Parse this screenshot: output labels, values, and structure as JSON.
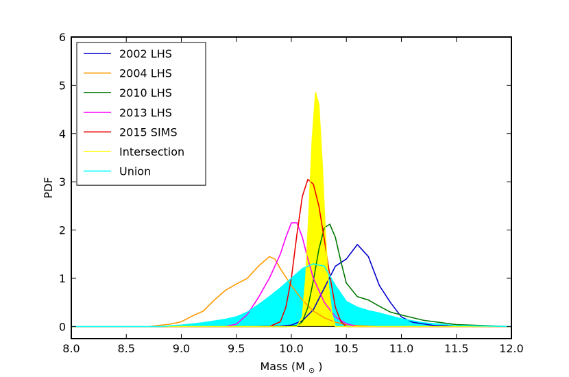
{
  "chart_data": {
    "type": "line",
    "xlabel": "Mass (M",
    "xlabel_sub": "⊙",
    "xlabel_end": ")",
    "ylabel": "PDF",
    "xlim": [
      8.0,
      12.0
    ],
    "ylim": [
      -0.25,
      6
    ],
    "xticks": [
      "8.0",
      "8.5",
      "9.0",
      "9.5",
      "10.0",
      "10.5",
      "11.0",
      "11.5",
      "12.0"
    ],
    "xtick_values": [
      8.0,
      8.5,
      9.0,
      9.5,
      10.0,
      10.5,
      11.0,
      11.5,
      12.0
    ],
    "yticks": [
      "0",
      "1",
      "2",
      "3",
      "4",
      "5",
      "6"
    ],
    "ytick_values": [
      0,
      1,
      2,
      3,
      4,
      5,
      6
    ],
    "grid": false,
    "legend_position": "top-left",
    "series": [
      {
        "name": "2002 LHS",
        "color": "#0000cc",
        "fill": false,
        "x": [
          8.0,
          9.6,
          9.9,
          10.0,
          10.1,
          10.2,
          10.3,
          10.4,
          10.5,
          10.6,
          10.7,
          10.8,
          10.9,
          11.0,
          11.1,
          11.3,
          12.0
        ],
        "y": [
          0,
          0,
          0.01,
          0.03,
          0.12,
          0.35,
          0.8,
          1.25,
          1.4,
          1.7,
          1.45,
          0.85,
          0.5,
          0.2,
          0.09,
          0.02,
          0
        ]
      },
      {
        "name": "2004 LHS",
        "color": "#ff9900",
        "fill": false,
        "x": [
          8.0,
          8.7,
          8.9,
          9.0,
          9.1,
          9.2,
          9.3,
          9.4,
          9.5,
          9.6,
          9.7,
          9.8,
          9.85,
          9.9,
          10.0,
          10.1,
          10.2,
          10.3,
          10.4,
          10.5,
          10.6,
          10.8,
          12.0
        ],
        "y": [
          0,
          0,
          0.05,
          0.1,
          0.22,
          0.32,
          0.55,
          0.75,
          0.88,
          1.0,
          1.25,
          1.45,
          1.4,
          1.2,
          0.85,
          0.55,
          0.32,
          0.18,
          0.09,
          0.04,
          0.02,
          0.0,
          0
        ]
      },
      {
        "name": "2010 LHS",
        "color": "#007700",
        "fill": false,
        "x": [
          8.0,
          9.95,
          10.05,
          10.1,
          10.15,
          10.2,
          10.25,
          10.3,
          10.35,
          10.4,
          10.45,
          10.5,
          10.6,
          10.7,
          10.8,
          10.9,
          11.0,
          11.2,
          11.5,
          11.85,
          12.0
        ],
        "y": [
          0,
          0,
          0.02,
          0.1,
          0.4,
          0.95,
          1.6,
          2.05,
          2.12,
          1.85,
          1.35,
          0.9,
          0.62,
          0.55,
          0.42,
          0.3,
          0.24,
          0.13,
          0.04,
          0.01,
          0
        ]
      },
      {
        "name": "2013 LHS",
        "color": "#ff00ff",
        "fill": false,
        "x": [
          8.0,
          9.4,
          9.5,
          9.6,
          9.7,
          9.8,
          9.9,
          9.95,
          10.0,
          10.05,
          10.1,
          10.15,
          10.2,
          10.3,
          10.4,
          10.5,
          10.6,
          12.0
        ],
        "y": [
          0,
          0,
          0.05,
          0.25,
          0.6,
          1.0,
          1.5,
          1.85,
          2.15,
          2.15,
          1.85,
          1.4,
          1.0,
          0.5,
          0.2,
          0.06,
          0.0,
          0
        ]
      },
      {
        "name": "2015 SIMS",
        "color": "#ee0000",
        "fill": false,
        "x": [
          8.0,
          9.8,
          9.9,
          9.95,
          10.0,
          10.05,
          10.1,
          10.15,
          10.2,
          10.25,
          10.3,
          10.35,
          10.4,
          10.45,
          10.5,
          12.0
        ],
        "y": [
          0,
          0,
          0.1,
          0.4,
          1.0,
          1.9,
          2.7,
          3.05,
          2.95,
          2.5,
          1.8,
          1.05,
          0.4,
          0.1,
          0.0,
          0
        ]
      },
      {
        "name": "Intersection",
        "color": "#ffff00",
        "fill": true,
        "x": [
          8.0,
          10.05,
          10.1,
          10.13,
          10.16,
          10.19,
          10.22,
          10.25,
          10.28,
          10.31,
          10.34,
          10.37,
          10.4,
          12.0
        ],
        "y": [
          0,
          0,
          0.2,
          1.0,
          2.4,
          3.9,
          4.85,
          4.6,
          3.4,
          1.9,
          0.8,
          0.25,
          0.0,
          0
        ]
      },
      {
        "name": "Union",
        "color": "#00ffff",
        "fill": true,
        "x": [
          8.0,
          8.8,
          9.0,
          9.2,
          9.4,
          9.5,
          9.6,
          9.7,
          9.8,
          9.9,
          10.0,
          10.1,
          10.2,
          10.3,
          10.4,
          10.5,
          10.6,
          10.7,
          10.8,
          10.9,
          11.0,
          11.2,
          11.5,
          12.0
        ],
        "y": [
          0,
          0,
          0.03,
          0.08,
          0.15,
          0.2,
          0.3,
          0.45,
          0.62,
          0.8,
          1.0,
          1.2,
          1.3,
          1.25,
          0.85,
          0.52,
          0.4,
          0.33,
          0.28,
          0.22,
          0.16,
          0.08,
          0.02,
          0
        ]
      }
    ]
  }
}
